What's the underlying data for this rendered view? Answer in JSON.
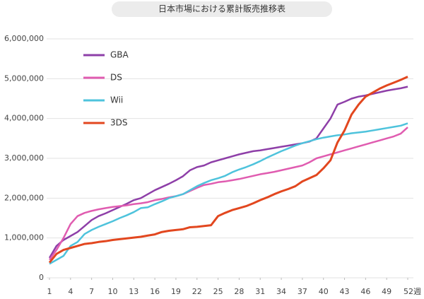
{
  "chart_data": {
    "type": "line",
    "title": "日本市場における累計販売推移表",
    "x": [
      1,
      2,
      3,
      4,
      5,
      6,
      7,
      8,
      9,
      10,
      11,
      12,
      13,
      14,
      15,
      16,
      17,
      18,
      19,
      20,
      21,
      22,
      23,
      24,
      25,
      26,
      27,
      28,
      29,
      30,
      31,
      32,
      33,
      34,
      35,
      36,
      37,
      38,
      39,
      40,
      41,
      42,
      43,
      44,
      45,
      46,
      47,
      48,
      49,
      50,
      51,
      52
    ],
    "xlim": [
      1,
      52
    ],
    "xticks": [
      1,
      4,
      7,
      10,
      13,
      16,
      19,
      22,
      25,
      28,
      31,
      34,
      37,
      40,
      43,
      46,
      49,
      {
        "value": 52,
        "label": "52週"
      }
    ],
    "ylim": [
      0,
      6000000
    ],
    "yticks": [
      0,
      {
        "value": 1000000,
        "label": "1,000,000"
      },
      {
        "value": 2000000,
        "label": "2,000,000"
      },
      {
        "value": 3000000,
        "label": "3,000,000"
      },
      {
        "value": 4000000,
        "label": "4,000,000"
      },
      {
        "value": 5000000,
        "label": "5,000,000"
      },
      {
        "value": 6000000,
        "label": "6,000,000"
      }
    ],
    "grid": true,
    "legend": "upper left",
    "series": [
      {
        "name": "GBA",
        "color": "#8e3fa8",
        "values": [
          500000,
          800000,
          950000,
          1050000,
          1150000,
          1300000,
          1450000,
          1550000,
          1620000,
          1700000,
          1780000,
          1860000,
          1950000,
          2000000,
          2100000,
          2200000,
          2280000,
          2360000,
          2450000,
          2550000,
          2700000,
          2780000,
          2820000,
          2900000,
          2950000,
          3000000,
          3050000,
          3100000,
          3140000,
          3180000,
          3200000,
          3230000,
          3260000,
          3290000,
          3320000,
          3350000,
          3380000,
          3420000,
          3500000,
          3750000,
          4000000,
          4350000,
          4420000,
          4500000,
          4550000,
          4580000,
          4620000,
          4660000,
          4700000,
          4730000,
          4760000,
          4800000
        ]
      },
      {
        "name": "DS",
        "color": "#e05cb0",
        "values": [
          450000,
          700000,
          1000000,
          1350000,
          1550000,
          1630000,
          1680000,
          1720000,
          1750000,
          1780000,
          1800000,
          1820000,
          1850000,
          1870000,
          1900000,
          1950000,
          1980000,
          2020000,
          2050000,
          2100000,
          2180000,
          2260000,
          2330000,
          2360000,
          2400000,
          2420000,
          2450000,
          2480000,
          2520000,
          2560000,
          2600000,
          2630000,
          2660000,
          2700000,
          2740000,
          2780000,
          2820000,
          2900000,
          3000000,
          3050000,
          3100000,
          3150000,
          3200000,
          3250000,
          3300000,
          3350000,
          3400000,
          3450000,
          3500000,
          3550000,
          3620000,
          3780000
        ]
      },
      {
        "name": "Wii",
        "color": "#4ec3dc",
        "values": [
          350000,
          450000,
          550000,
          800000,
          900000,
          1100000,
          1200000,
          1280000,
          1350000,
          1420000,
          1500000,
          1570000,
          1650000,
          1750000,
          1770000,
          1850000,
          1920000,
          2000000,
          2050000,
          2100000,
          2200000,
          2300000,
          2380000,
          2450000,
          2500000,
          2560000,
          2650000,
          2720000,
          2780000,
          2850000,
          2930000,
          3020000,
          3100000,
          3180000,
          3250000,
          3320000,
          3380000,
          3430000,
          3480000,
          3520000,
          3550000,
          3580000,
          3600000,
          3630000,
          3650000,
          3670000,
          3700000,
          3730000,
          3760000,
          3790000,
          3820000,
          3880000
        ]
      },
      {
        "name": "3DS",
        "color": "#e2471f",
        "values": [
          380000,
          600000,
          700000,
          750000,
          800000,
          850000,
          870000,
          900000,
          920000,
          950000,
          970000,
          990000,
          1010000,
          1030000,
          1060000,
          1090000,
          1150000,
          1180000,
          1200000,
          1220000,
          1270000,
          1280000,
          1300000,
          1320000,
          1550000,
          1630000,
          1700000,
          1750000,
          1800000,
          1870000,
          1950000,
          2020000,
          2100000,
          2170000,
          2230000,
          2300000,
          2420000,
          2500000,
          2580000,
          2750000,
          2950000,
          3400000,
          3700000,
          4100000,
          4350000,
          4550000,
          4650000,
          4750000,
          4830000,
          4900000,
          4970000,
          5050000
        ]
      }
    ]
  }
}
